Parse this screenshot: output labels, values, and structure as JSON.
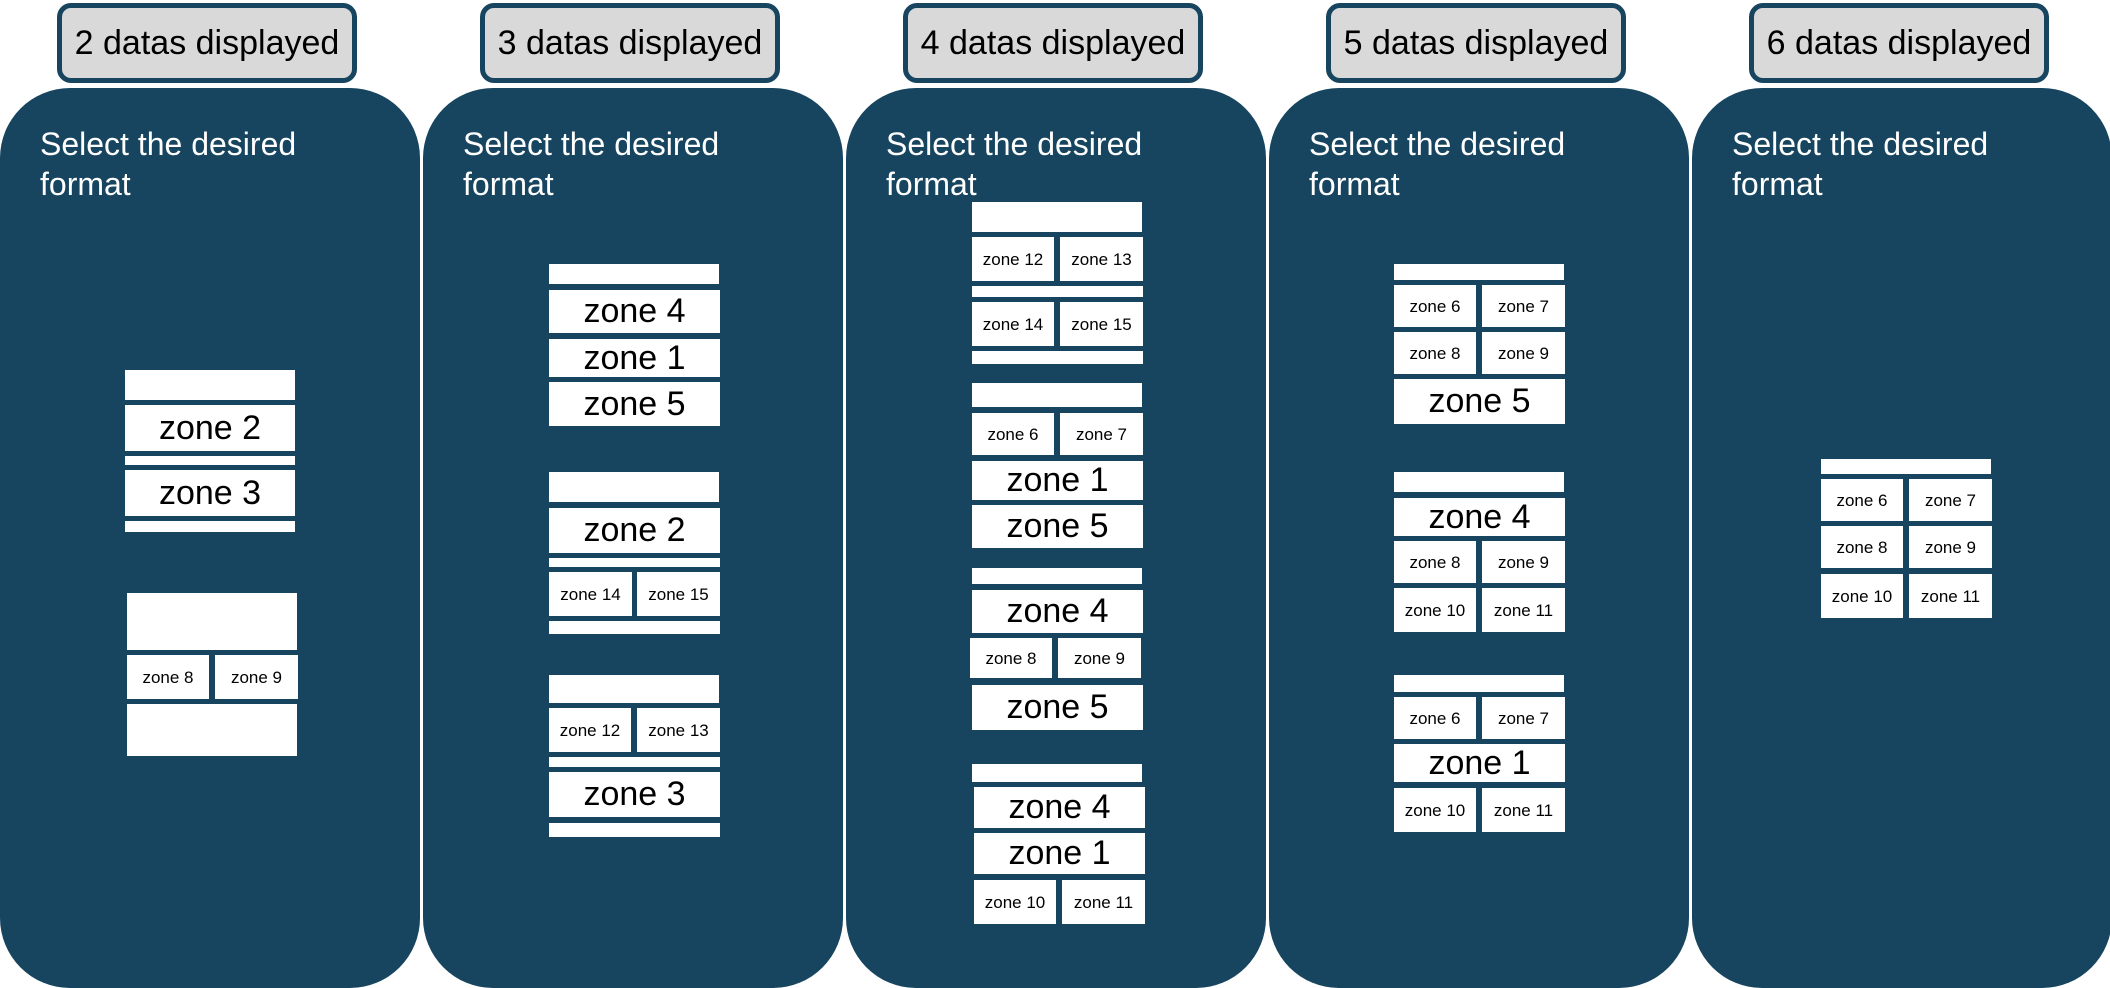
{
  "headers": [
    "2 datas displayed",
    "3 datas displayed",
    "4 datas displayed",
    "5 datas displayed",
    "6 datas displayed"
  ],
  "panel_title": "Select the desired format",
  "zones": {
    "z1": "zone 1",
    "z2": "zone 2",
    "z3": "zone 3",
    "z4": "zone 4",
    "z5": "zone 5",
    "z6": "zone 6",
    "z7": "zone 7",
    "z8": "zone 8",
    "z9": "zone 9",
    "z10": "zone 10",
    "z11": "zone 11",
    "z12": "zone 12",
    "z13": "zone 13",
    "z14": "zone 14",
    "z15": "zone 15"
  },
  "colors": {
    "panel": "#17455f",
    "header_fill": "#d9d9d9",
    "block": "#ffffff"
  }
}
